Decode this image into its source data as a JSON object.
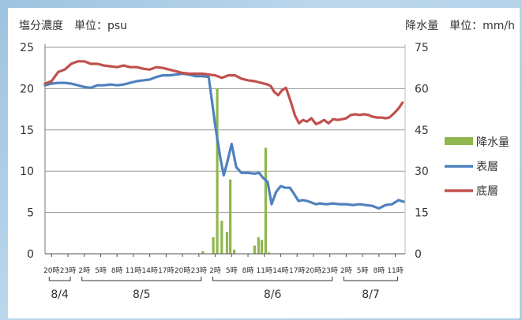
{
  "chart_data": {
    "type": "line",
    "left_axis_title": "塩分濃度　単位：psu",
    "right_axis_title": "降水量　単位：mm/h",
    "y_left": {
      "min": 0,
      "max": 25,
      "ticks": [
        0,
        5,
        10,
        15,
        20,
        25
      ]
    },
    "y_right": {
      "min": 0,
      "max": 75,
      "ticks": [
        0,
        15,
        30,
        45,
        60,
        75
      ]
    },
    "grid": true,
    "legend_position": "right",
    "colors": {
      "precip": "#8fb74e",
      "surface": "#4f81bd",
      "bottom": "#c0504d"
    },
    "time_ticks": [
      "20時",
      "23時",
      "2時",
      "5時",
      "8時",
      "11時",
      "14時",
      "17時",
      "20時",
      "23時",
      "2時",
      "5時",
      "8時",
      "11時",
      "14時",
      "17時",
      "20時",
      "23時",
      "2時",
      "5時",
      "8時",
      "11時"
    ],
    "date_labels": [
      {
        "label": "8/4",
        "from": 0,
        "to": 1
      },
      {
        "label": "8/5",
        "from": 2,
        "to": 9
      },
      {
        "label": "8/6",
        "from": 10,
        "to": 17
      },
      {
        "label": "8/7",
        "from": 18,
        "to": 21
      }
    ],
    "series": [
      {
        "name": "降水量",
        "axis": "right",
        "kind": "bar",
        "points": [
          [
            24.1,
            1
          ],
          [
            25.7,
            6
          ],
          [
            26.3,
            60
          ],
          [
            27.0,
            12
          ],
          [
            27.8,
            8
          ],
          [
            28.3,
            27
          ],
          [
            28.9,
            1.5
          ],
          [
            32.0,
            3
          ],
          [
            32.6,
            6
          ],
          [
            33.1,
            5
          ],
          [
            33.7,
            38.5
          ],
          [
            34.2,
            0.5
          ]
        ]
      },
      {
        "name": "表層",
        "axis": "left",
        "kind": "line",
        "points": [
          [
            0,
            20.4
          ],
          [
            1,
            20.6
          ],
          [
            2,
            20.7
          ],
          [
            3,
            20.7
          ],
          [
            4,
            20.6
          ],
          [
            5,
            20.4
          ],
          [
            6,
            20.2
          ],
          [
            7,
            20.1
          ],
          [
            8,
            20.4
          ],
          [
            9,
            20.4
          ],
          [
            10,
            20.5
          ],
          [
            11,
            20.4
          ],
          [
            12,
            20.5
          ],
          [
            13,
            20.7
          ],
          [
            14,
            20.9
          ],
          [
            15,
            21.0
          ],
          [
            16,
            21.1
          ],
          [
            17,
            21.4
          ],
          [
            18,
            21.6
          ],
          [
            19,
            21.6
          ],
          [
            20,
            21.7
          ],
          [
            21,
            21.8
          ],
          [
            22,
            21.7
          ],
          [
            23,
            21.5
          ],
          [
            24,
            21.5
          ],
          [
            25,
            21.4
          ],
          [
            26,
            15.5
          ],
          [
            26.8,
            11.5
          ],
          [
            27.3,
            9.5
          ],
          [
            27.8,
            11.0
          ],
          [
            28.5,
            13.3
          ],
          [
            29.2,
            10.5
          ],
          [
            30,
            9.8
          ],
          [
            31,
            9.8
          ],
          [
            32,
            9.7
          ],
          [
            32.7,
            9.8
          ],
          [
            33.3,
            9.2
          ],
          [
            34,
            8.7
          ],
          [
            34.6,
            6.0
          ],
          [
            35.3,
            7.5
          ],
          [
            36,
            8.2
          ],
          [
            36.7,
            8.0
          ],
          [
            37.4,
            8.0
          ],
          [
            38,
            7.3
          ],
          [
            38.7,
            6.4
          ],
          [
            39.4,
            6.5
          ],
          [
            40,
            6.4
          ],
          [
            40.7,
            6.2
          ],
          [
            41.4,
            6.0
          ],
          [
            42,
            6.1
          ],
          [
            43,
            6.0
          ],
          [
            44,
            6.1
          ],
          [
            45,
            6.0
          ],
          [
            46,
            6.0
          ],
          [
            47,
            5.9
          ],
          [
            48,
            6.0
          ],
          [
            49,
            5.9
          ],
          [
            50,
            5.8
          ],
          [
            51,
            5.5
          ],
          [
            52,
            5.9
          ],
          [
            53,
            6.0
          ],
          [
            54,
            6.5
          ],
          [
            54.8,
            6.3
          ]
        ]
      },
      {
        "name": "底層",
        "axis": "left",
        "kind": "line",
        "points": [
          [
            0,
            20.6
          ],
          [
            1,
            20.9
          ],
          [
            2,
            22.0
          ],
          [
            3,
            22.3
          ],
          [
            4,
            23.0
          ],
          [
            5,
            23.3
          ],
          [
            6,
            23.3
          ],
          [
            7,
            23.0
          ],
          [
            8,
            23.0
          ],
          [
            9,
            22.8
          ],
          [
            10,
            22.7
          ],
          [
            11,
            22.6
          ],
          [
            12,
            22.8
          ],
          [
            13,
            22.6
          ],
          [
            14,
            22.6
          ],
          [
            15,
            22.4
          ],
          [
            16,
            22.3
          ],
          [
            17,
            22.6
          ],
          [
            18,
            22.5
          ],
          [
            19,
            22.3
          ],
          [
            20,
            22.1
          ],
          [
            21,
            21.9
          ],
          [
            22,
            21.8
          ],
          [
            23,
            21.8
          ],
          [
            24,
            21.8
          ],
          [
            25,
            21.7
          ],
          [
            26,
            21.6
          ],
          [
            27,
            21.3
          ],
          [
            28,
            21.6
          ],
          [
            29,
            21.6
          ],
          [
            30,
            21.2
          ],
          [
            31,
            21.0
          ],
          [
            32,
            20.9
          ],
          [
            33,
            20.7
          ],
          [
            34,
            20.5
          ],
          [
            34.5,
            20.3
          ],
          [
            35,
            19.6
          ],
          [
            35.6,
            19.2
          ],
          [
            36.2,
            19.8
          ],
          [
            36.8,
            20.1
          ],
          [
            37.5,
            18.5
          ],
          [
            38.2,
            16.7
          ],
          [
            38.8,
            15.8
          ],
          [
            39.4,
            16.2
          ],
          [
            40,
            16.0
          ],
          [
            40.7,
            16.4
          ],
          [
            41.4,
            15.7
          ],
          [
            42,
            15.9
          ],
          [
            42.6,
            16.2
          ],
          [
            43.3,
            15.8
          ],
          [
            44,
            16.3
          ],
          [
            44.7,
            16.2
          ],
          [
            45.4,
            16.3
          ],
          [
            46,
            16.4
          ],
          [
            46.7,
            16.8
          ],
          [
            47.4,
            16.9
          ],
          [
            48,
            16.8
          ],
          [
            48.7,
            16.9
          ],
          [
            49.4,
            16.8
          ],
          [
            50,
            16.6
          ],
          [
            50.7,
            16.5
          ],
          [
            51.4,
            16.5
          ],
          [
            52,
            16.4
          ],
          [
            52.6,
            16.5
          ],
          [
            53.3,
            17.0
          ],
          [
            54,
            17.6
          ],
          [
            54.6,
            18.3
          ]
        ]
      }
    ]
  }
}
